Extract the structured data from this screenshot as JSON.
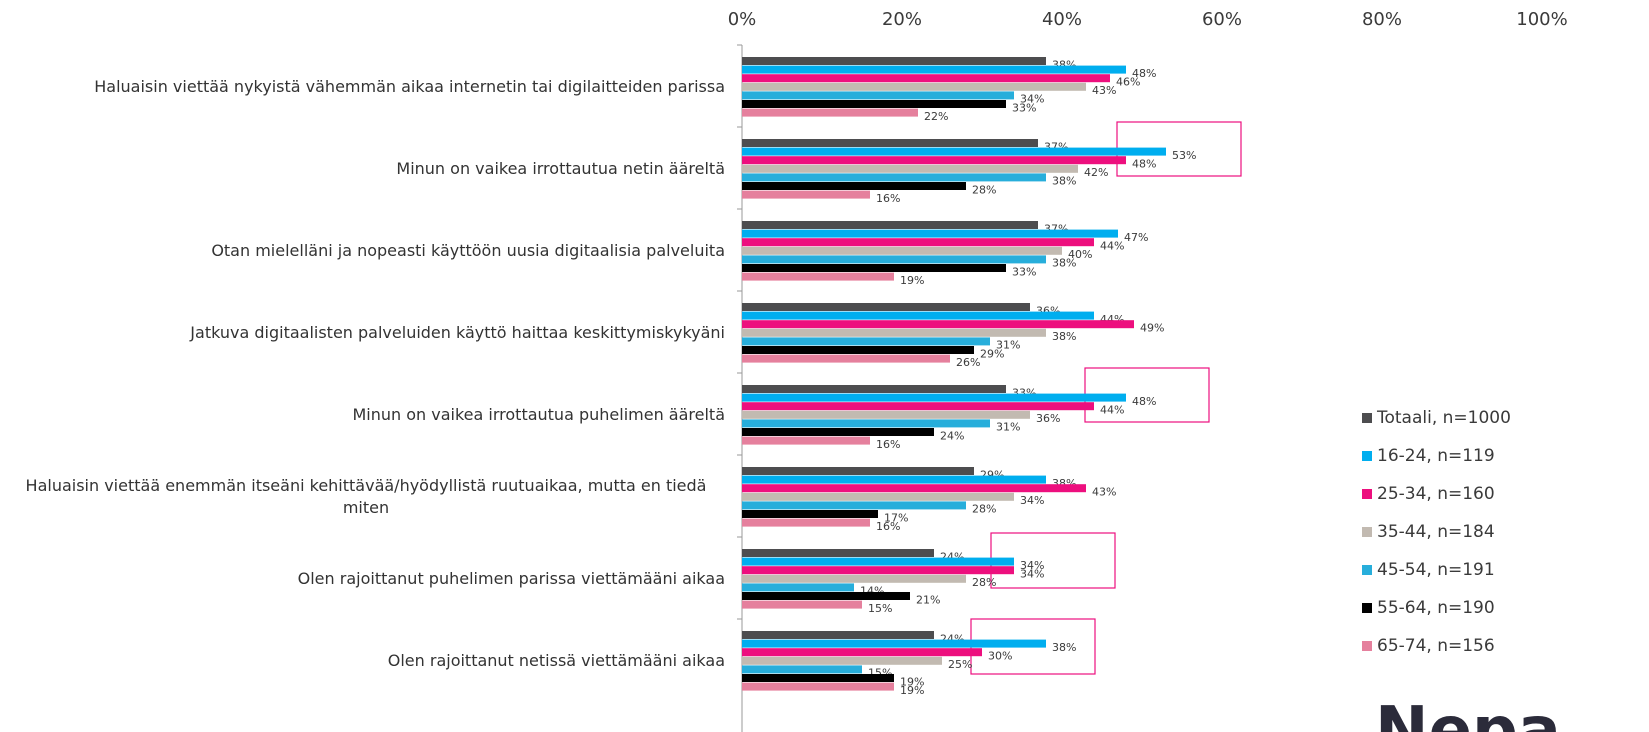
{
  "chart_data": {
    "type": "bar",
    "orientation": "horizontal",
    "categories": [
      "Haluaisin viettää nykyistä vähemmän aikaa internetin tai digilaitteiden parissa",
      "Minun on vaikea irrottautua netin ääreltä",
      "Otan mielelläni ja nopeasti käyttöön uusia digitaalisia palveluita",
      "Jatkuva digitaalisten palveluiden käyttö haittaa keskittymiskykyäni",
      "Minun on vaikea irrottautua puhelimen ääreltä",
      "Haluaisin viettää enemmän itseäni kehittävää/hyödyllistä ruutuaikaa, mutta en tiedä miten",
      "Olen rajoittanut puhelimen parissa viettämääni aikaa",
      "Olen rajoittanut netissä viettämääni aikaa"
    ],
    "series": [
      {
        "name": "Totaali, n=1000",
        "color": "#4d4d4f",
        "values": [
          38,
          37,
          37,
          36,
          33,
          29,
          24,
          24
        ],
        "value_labels": [
          "38%",
          "37%",
          "37%",
          "36%",
          "33%",
          "29%",
          "24%",
          "24%"
        ]
      },
      {
        "name": "16-24, n=119",
        "color": "#00aeef",
        "values": [
          48,
          53,
          47,
          44,
          48,
          38,
          34,
          38
        ],
        "value_labels": [
          "48%",
          "53%",
          "47%",
          "44%",
          "48%",
          "38%",
          "34%",
          "38%"
        ]
      },
      {
        "name": "25-34, n=160",
        "color": "#ed0f7e",
        "values": [
          46,
          48,
          44,
          49,
          44,
          43,
          34,
          30
        ],
        "value_labels": [
          "46%",
          "48%",
          "44%",
          "49%",
          "44%",
          "43%",
          "34%",
          "30%"
        ]
      },
      {
        "name": "35-44, n=184",
        "color": "#c2bab1",
        "values": [
          43,
          42,
          40,
          38,
          36,
          34,
          28,
          25
        ],
        "value_labels": [
          "43%",
          "42%",
          "40%",
          "38%",
          "36%",
          "34%",
          "28%",
          "25%"
        ]
      },
      {
        "name": "45-54, n=191",
        "color": "#27aedb",
        "values": [
          34,
          38,
          38,
          31,
          31,
          28,
          14,
          15
        ],
        "value_labels": [
          "34%",
          "38%",
          "38%",
          "31%",
          "31%",
          "28%",
          "14%",
          "15%"
        ]
      },
      {
        "name": "55-64, n=190",
        "color": "#000000",
        "values": [
          33,
          28,
          33,
          29,
          24,
          17,
          21,
          19
        ],
        "value_labels": [
          "33%",
          "28%",
          "33%",
          "29%",
          "24%",
          "17%",
          "21%",
          "19%"
        ]
      },
      {
        "name": "65-74, n=156",
        "color": "#e5809d",
        "values": [
          22,
          16,
          19,
          26,
          16,
          16,
          15,
          19
        ],
        "value_labels": [
          "22%",
          "16%",
          "19%",
          "26%",
          "16%",
          "16%",
          "15%",
          "19%"
        ]
      }
    ],
    "xlim": [
      0,
      100
    ],
    "xticks": [
      {
        "value": 0,
        "label": "0%"
      },
      {
        "value": 20,
        "label": "20%"
      },
      {
        "value": 40,
        "label": "40%"
      },
      {
        "value": 60,
        "label": "60%"
      },
      {
        "value": 80,
        "label": "80%"
      },
      {
        "value": 100,
        "label": "100%"
      }
    ],
    "legend": "right",
    "brand": "Nepa"
  }
}
